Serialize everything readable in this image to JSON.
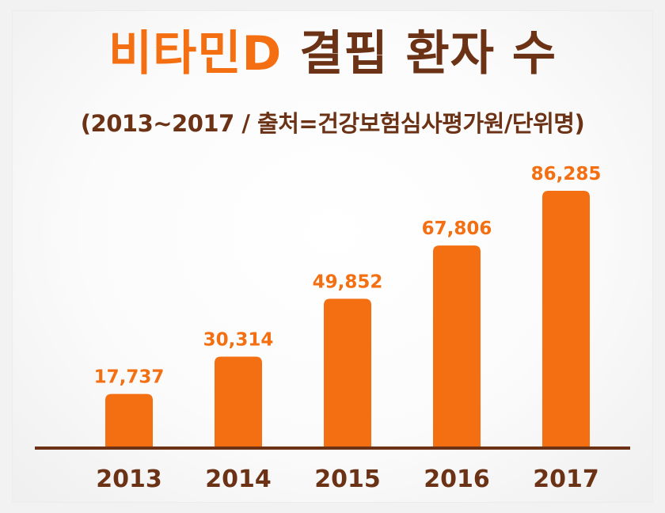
{
  "colors": {
    "bar": "#f46f12",
    "value_label": "#f46f12",
    "axis": "#6b3215",
    "year_label": "#6b3215",
    "title_highlight": "#f46f12",
    "title_rest": "#6b3215"
  },
  "title": {
    "highlight": "비타민D",
    "rest": "결핍 환자 수"
  },
  "subtitle": "(2013~2017 / 출처=건강보험심사평가원/단위명)",
  "chart_data": {
    "type": "bar",
    "title": "비타민D 결핍 환자 수",
    "subtitle": "(2013~2017 / 출처=건강보험심사평가원/단위명)",
    "categories": [
      "2013",
      "2014",
      "2015",
      "2016",
      "2017"
    ],
    "values": [
      17737,
      30314,
      49852,
      67806,
      86285
    ],
    "value_labels": [
      "17,737",
      "30,314",
      "49,852",
      "67,806",
      "86,285"
    ],
    "xlabel": "",
    "ylabel": "",
    "ylim": [
      0,
      100000
    ],
    "grid": false,
    "legend": "none"
  }
}
